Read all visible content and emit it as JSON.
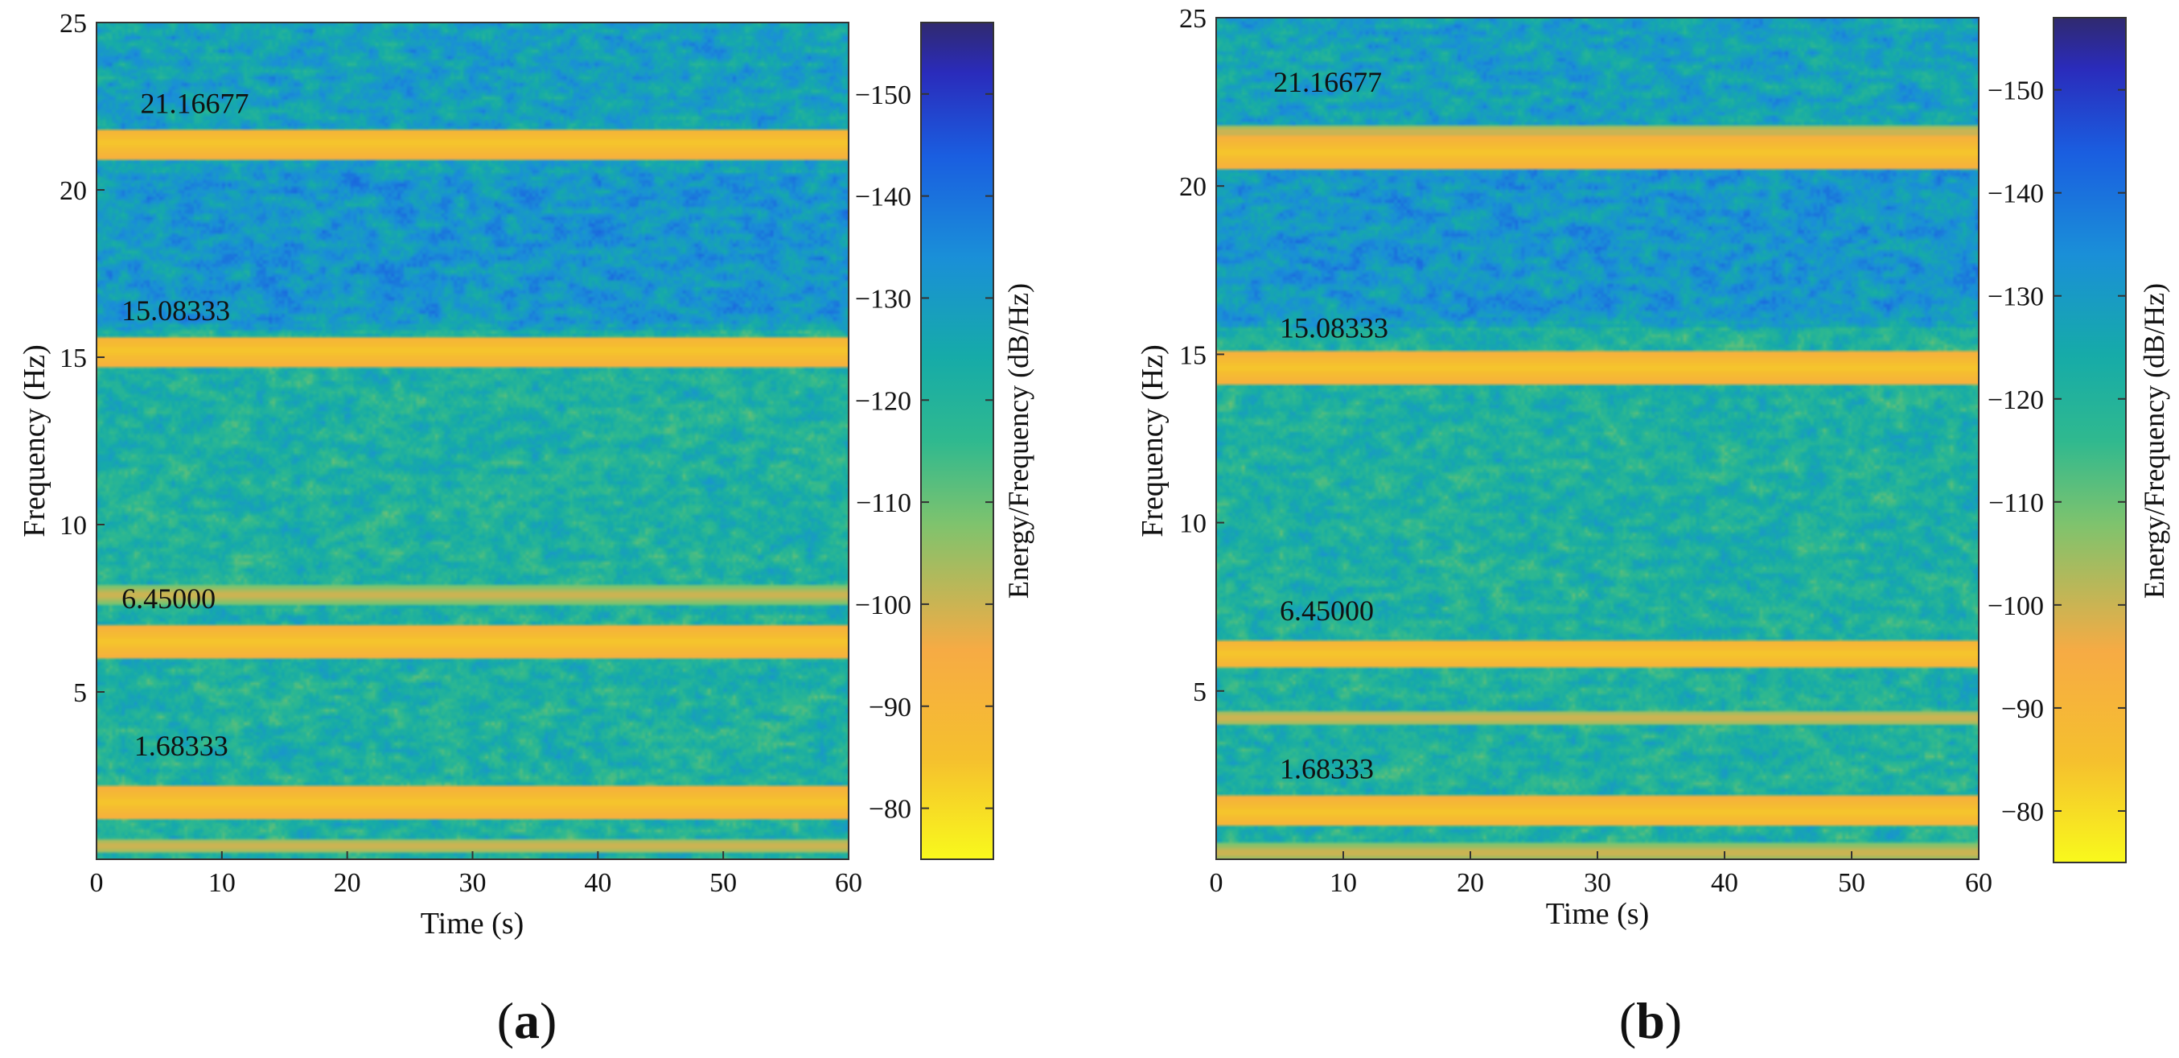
{
  "chart_data": [
    {
      "type": "heatmap",
      "panel_label": "a",
      "xlabel": "Time (s)",
      "ylabel": "Frequency (Hz)",
      "colorbar_label": "Energy/Frequency (dB/Hz)",
      "xlim": [
        0,
        60
      ],
      "ylim": [
        0,
        25
      ],
      "xticks": [
        0,
        10,
        20,
        30,
        40,
        50,
        60
      ],
      "yticks": [
        5,
        10,
        15,
        20,
        25
      ],
      "color_range": [
        -75,
        -157
      ],
      "colorbar_ticks": [
        -80,
        -90,
        -100,
        -110,
        -120,
        -130,
        -140,
        -150
      ],
      "colorbar_tick_labels": [
        "−80",
        "−90",
        "−100",
        "−110",
        "−120",
        "−130",
        "−140",
        "−150"
      ],
      "bands": [
        {
          "frequency": 1.68333,
          "band_center": 1.7,
          "label": "1.68333",
          "label_pos": [
            3,
            3.1
          ]
        },
        {
          "frequency": 6.45,
          "band_center": 6.5,
          "label": "6.45000",
          "label_pos": [
            2,
            7.5
          ]
        },
        {
          "frequency": 15.08333,
          "band_center": 15.2,
          "label": "15.08333",
          "label_pos": [
            2,
            16.1
          ]
        },
        {
          "frequency": 21.16677,
          "band_center": 21.4,
          "label": "21.16677",
          "label_pos": [
            3.5,
            22.3
          ]
        }
      ],
      "secondary_bands": [
        7.9,
        0.4
      ],
      "seed": 11
    },
    {
      "type": "heatmap",
      "panel_label": "b",
      "xlabel": "Time (s)",
      "ylabel": "Frequency (Hz)",
      "colorbar_label": "Energy/Frequency (dB/Hz)",
      "xlim": [
        0,
        60
      ],
      "ylim": [
        0,
        25
      ],
      "xticks": [
        0,
        10,
        20,
        30,
        40,
        50,
        60
      ],
      "yticks": [
        5,
        10,
        15,
        20,
        25
      ],
      "color_range": [
        -75,
        -157
      ],
      "colorbar_ticks": [
        -80,
        -90,
        -100,
        -110,
        -120,
        -130,
        -140,
        -150
      ],
      "colorbar_tick_labels": [
        "−80",
        "−90",
        "−100",
        "−110",
        "−120",
        "−130",
        "−140",
        "−150"
      ],
      "bands": [
        {
          "frequency": 1.68333,
          "band_center": 1.4,
          "label": "1.68333",
          "label_pos": [
            5,
            2.4
          ]
        },
        {
          "frequency": 6.45,
          "band_center": 6.1,
          "label": "6.45000",
          "label_pos": [
            5,
            7.1
          ]
        },
        {
          "frequency": 15.08333,
          "band_center": 14.6,
          "label": "15.08333",
          "label_pos": [
            5,
            15.5
          ]
        },
        {
          "frequency": 21.16677,
          "band_center": 21.0,
          "label": "21.16677",
          "label_pos": [
            4.5,
            22.8
          ]
        }
      ],
      "secondary_bands": [
        21.6,
        4.2,
        0.2
      ],
      "seed": 29
    }
  ]
}
